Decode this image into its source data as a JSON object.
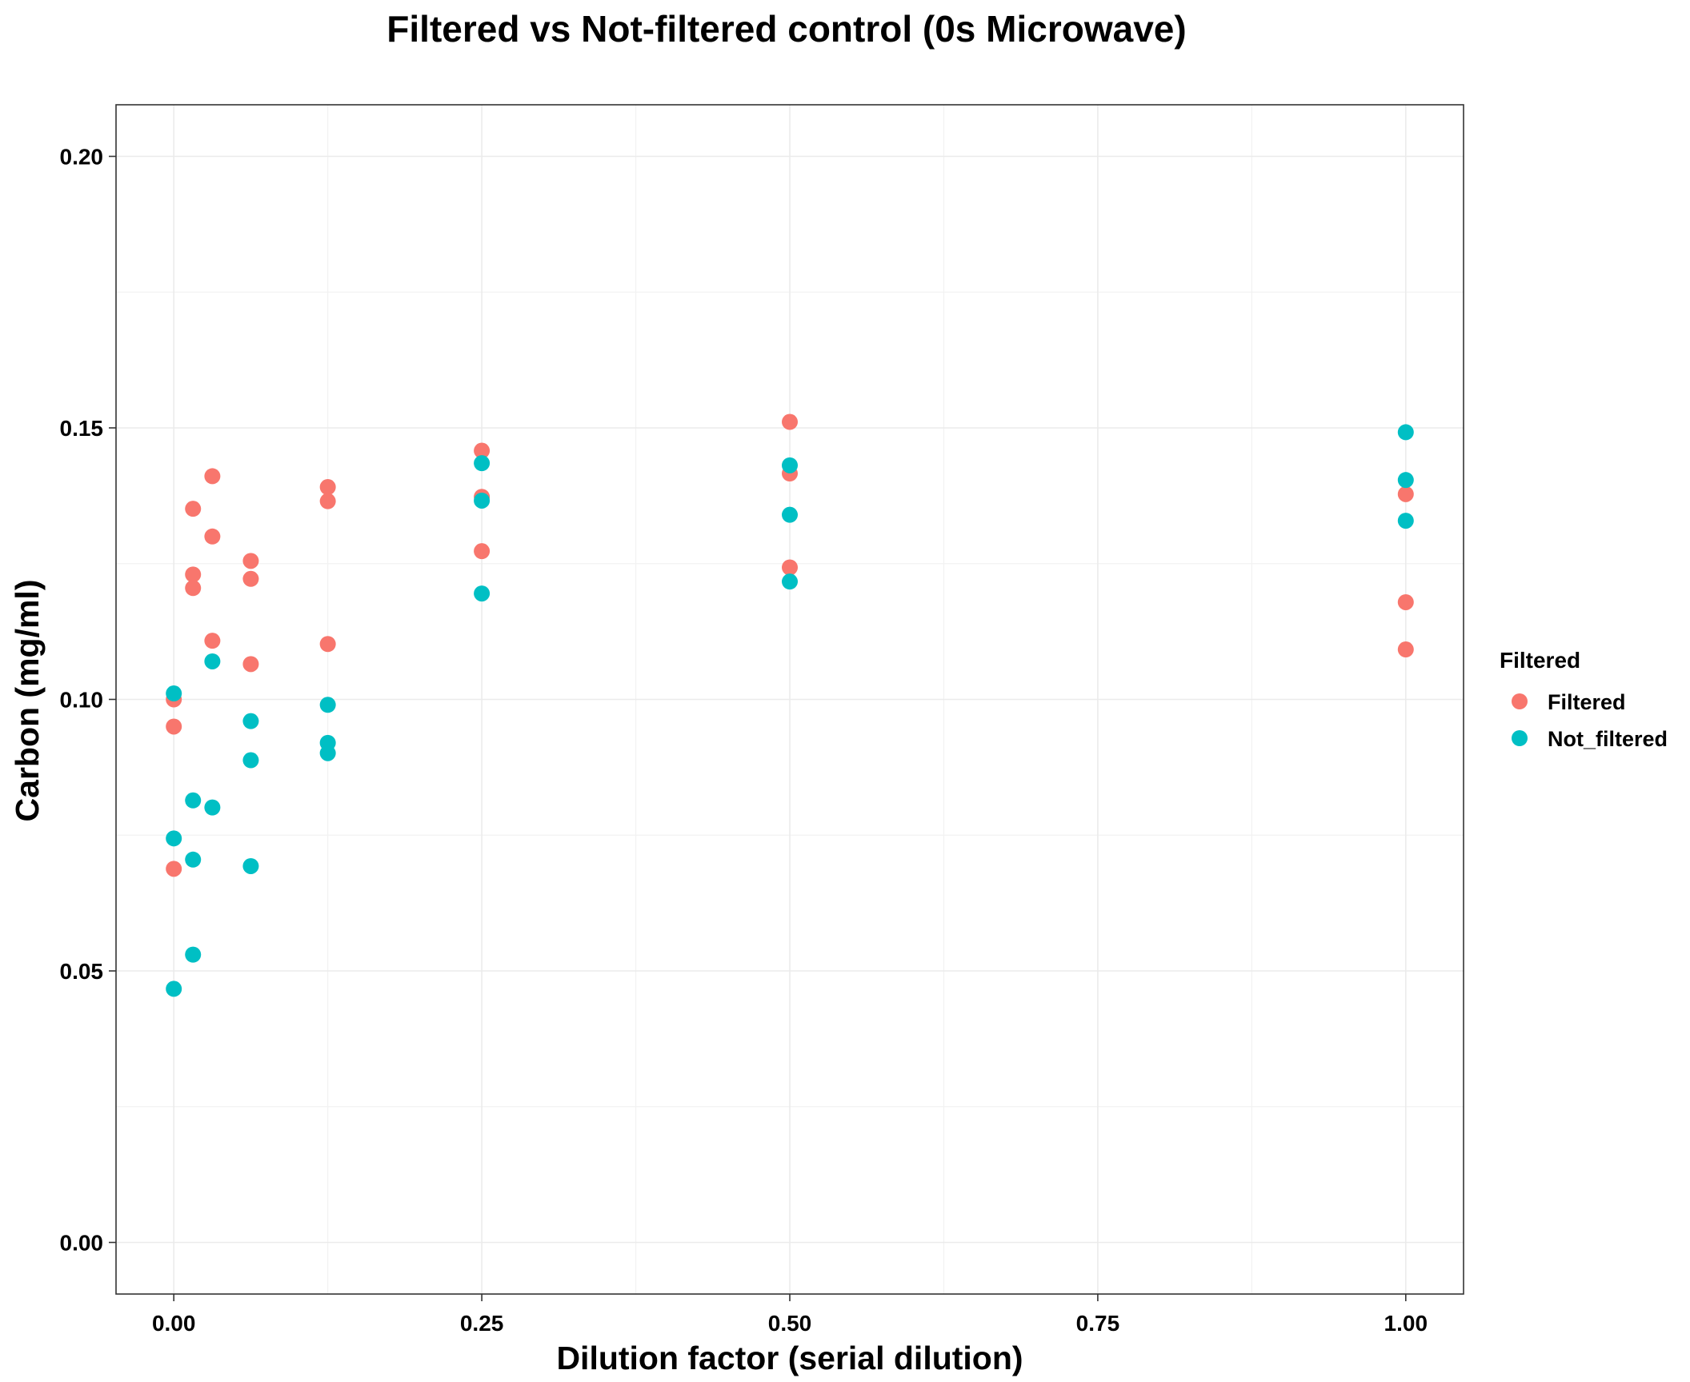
{
  "chart_data": {
    "type": "scatter",
    "title": "Filtered vs Not-filtered control (0s Microwave)",
    "xlabel": "Dilution factor (serial dilution)",
    "ylabel": "Carbon (mg/ml)",
    "xlim": [
      -0.0469,
      1.0469
    ],
    "ylim": [
      -0.0095,
      0.2095
    ],
    "x_ticks": [
      0.0,
      0.25,
      0.5,
      0.75,
      1.0
    ],
    "x_tick_labels": [
      "0.00",
      "0.25",
      "0.50",
      "0.75",
      "1.00"
    ],
    "y_ticks": [
      0.0,
      0.05,
      0.1,
      0.15,
      0.2
    ],
    "y_tick_labels": [
      "0.00",
      "0.05",
      "0.10",
      "0.15",
      "0.20"
    ],
    "grid": true,
    "legend": {
      "title": "Filtered",
      "placement": "right",
      "entries": [
        "Filtered",
        "Not_filtered"
      ]
    },
    "series": [
      {
        "name": "Filtered",
        "color": "#F8766D",
        "points": [
          [
            0.0,
            0.1
          ],
          [
            0.0,
            0.095
          ],
          [
            0.0,
            0.0688
          ],
          [
            0.0156,
            0.1351
          ],
          [
            0.0156,
            0.123
          ],
          [
            0.0156,
            0.1205
          ],
          [
            0.0313,
            0.1411
          ],
          [
            0.0313,
            0.13
          ],
          [
            0.0313,
            0.1108
          ],
          [
            0.0625,
            0.1255
          ],
          [
            0.0625,
            0.1222
          ],
          [
            0.0625,
            0.1065
          ],
          [
            0.125,
            0.1391
          ],
          [
            0.125,
            0.1365
          ],
          [
            0.125,
            0.1102
          ],
          [
            0.25,
            0.1458
          ],
          [
            0.25,
            0.1373
          ],
          [
            0.25,
            0.1273
          ],
          [
            0.5,
            0.1511
          ],
          [
            0.5,
            0.1416
          ],
          [
            0.5,
            0.1243
          ],
          [
            1.0,
            0.1378
          ],
          [
            1.0,
            0.1179
          ],
          [
            1.0,
            0.1092
          ]
        ]
      },
      {
        "name": "Not_filtered",
        "color": "#00BFC4",
        "points": [
          [
            0.0,
            0.1011
          ],
          [
            0.0,
            0.0744
          ],
          [
            0.0,
            0.0467
          ],
          [
            0.0156,
            0.0814
          ],
          [
            0.0156,
            0.0705
          ],
          [
            0.0156,
            0.053
          ],
          [
            0.0313,
            0.107
          ],
          [
            0.0313,
            0.0801
          ],
          [
            0.0625,
            0.096
          ],
          [
            0.0625,
            0.0888
          ],
          [
            0.0625,
            0.0693
          ],
          [
            0.125,
            0.099
          ],
          [
            0.125,
            0.092
          ],
          [
            0.125,
            0.0901
          ],
          [
            0.25,
            0.1435
          ],
          [
            0.25,
            0.1366
          ],
          [
            0.25,
            0.1195
          ],
          [
            0.5,
            0.1431
          ],
          [
            0.5,
            0.134
          ],
          [
            0.5,
            0.1217
          ],
          [
            1.0,
            0.1492
          ],
          [
            1.0,
            0.1404
          ],
          [
            1.0,
            0.1329
          ]
        ]
      }
    ]
  }
}
